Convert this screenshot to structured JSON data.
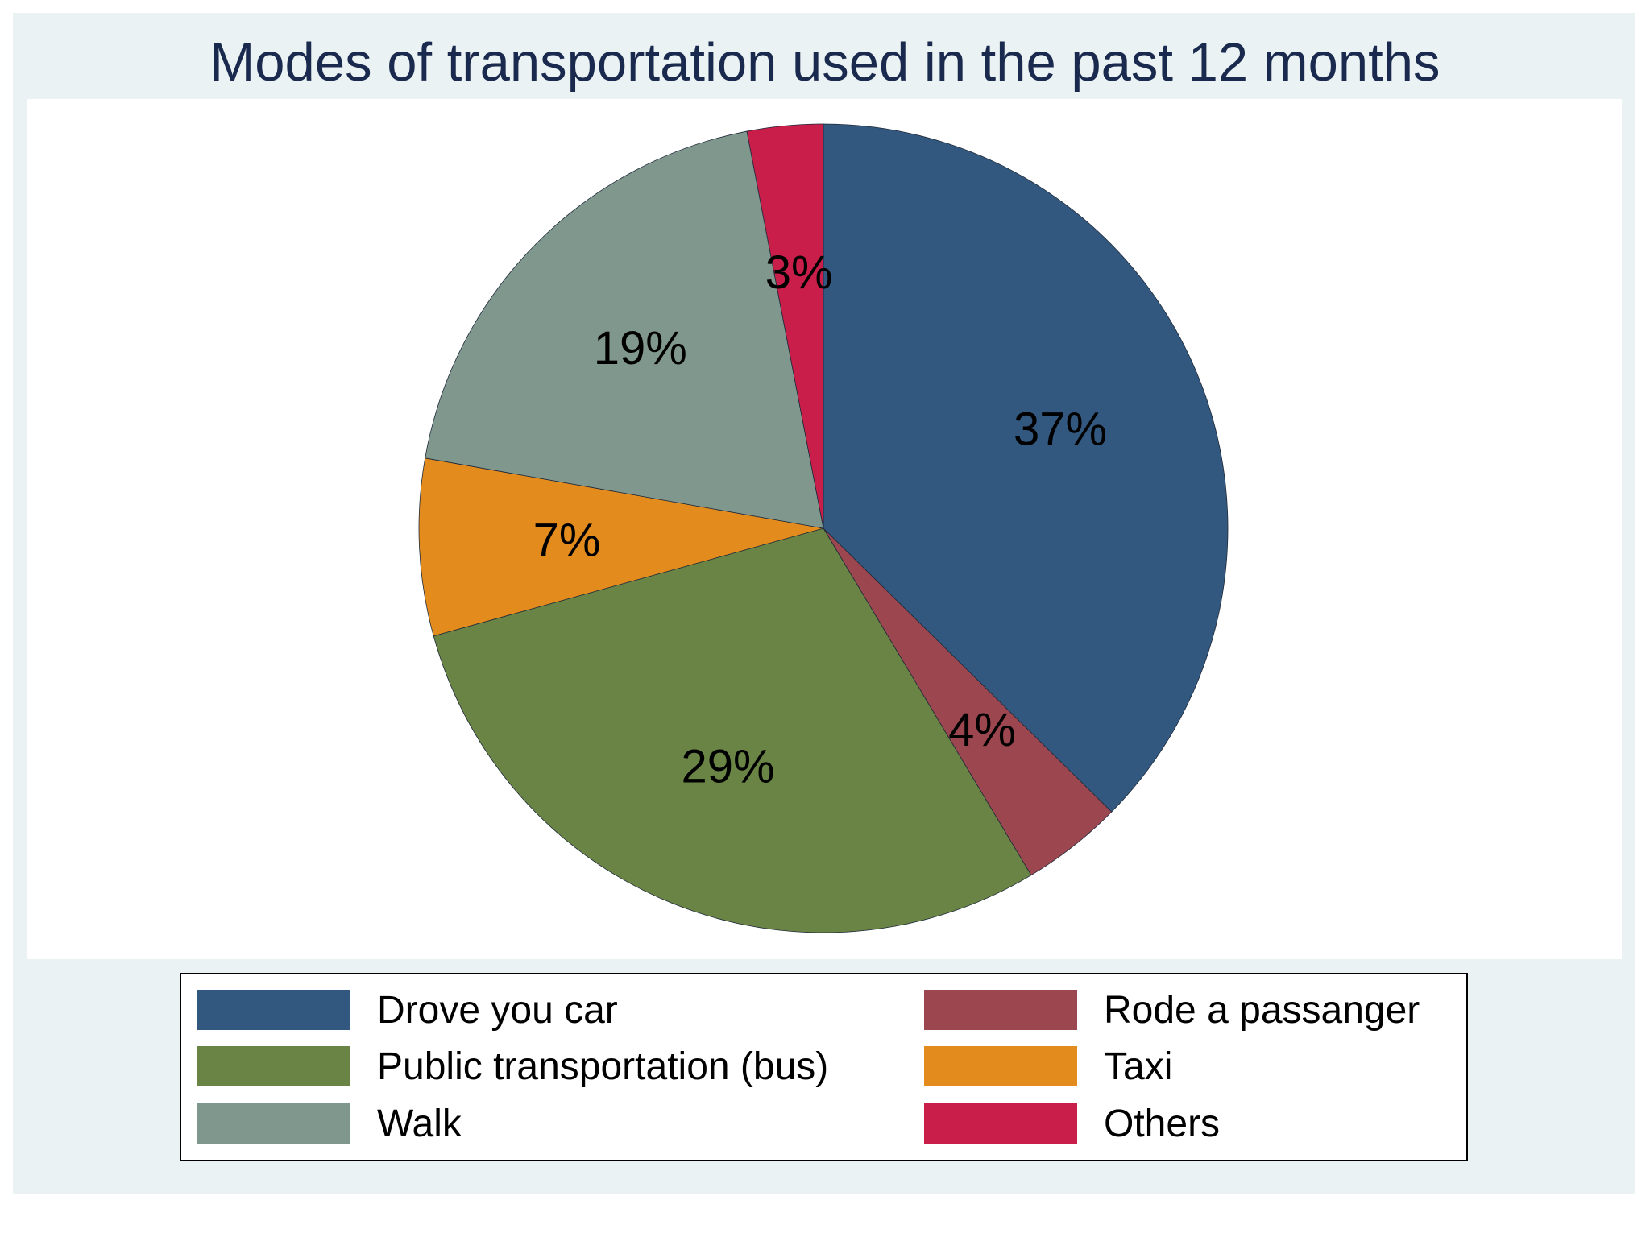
{
  "chart_data": {
    "type": "pie",
    "title": "Modes of transportation used in the past 12 months",
    "start_angle": "12 o'clock",
    "direction": "clockwise",
    "slices": [
      {
        "name": "Drove you car",
        "value": 37,
        "label": "37%",
        "color": "#33587f"
      },
      {
        "name": "Rode a passanger",
        "value": 4,
        "label": "4%",
        "color": "#9c4750"
      },
      {
        "name": "Public transportation (bus)",
        "value": 29,
        "label": "29%",
        "color": "#698444"
      },
      {
        "name": "Taxi",
        "value": 7,
        "label": "7%",
        "color": "#e48b1e"
      },
      {
        "name": "Walk",
        "value": 19,
        "label": "19%",
        "color": "#80978e"
      },
      {
        "name": "Others",
        "value": 3,
        "label": "3%",
        "color": "#c81e49"
      }
    ],
    "legend": {
      "placement": "bottom",
      "columns": 2,
      "order": [
        "Drove you car",
        "Rode a passanger",
        "Public transportation (bus)",
        "Taxi",
        "Walk",
        "Others"
      ]
    }
  }
}
